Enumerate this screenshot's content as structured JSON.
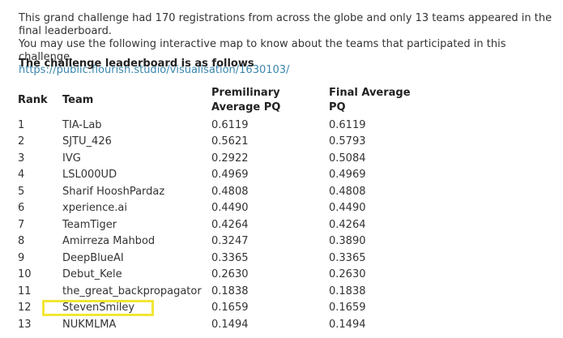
{
  "intro": {
    "line1": "This grand challenge had 170 registrations from across the globe and only 13 teams appeared in the final leaderboard.",
    "line2": "You may use the following interactive map to know about the teams that participated in this challenge.",
    "link": "https://public.flourish.studio/visualisation/1630103/"
  },
  "heading": "The challenge leaderboard is as follows",
  "table": {
    "headers": {
      "rank": "Rank",
      "team": "Team",
      "prelim": "Premilinary Average PQ",
      "final": "Final Average PQ"
    },
    "rows": [
      {
        "rank": "1",
        "team": "TIA-Lab",
        "prelim": "0.6119",
        "final": "0.6119"
      },
      {
        "rank": "2",
        "team": "SJTU_426",
        "prelim": "0.5621",
        "final": "0.5793"
      },
      {
        "rank": "3",
        "team": "IVG",
        "prelim": "0.2922",
        "final": "0.5084"
      },
      {
        "rank": "4",
        "team": "LSL000UD",
        "prelim": "0.4969",
        "final": "0.4969"
      },
      {
        "rank": "5",
        "team": "Sharif HooshPardaz",
        "prelim": "0.4808",
        "final": "0.4808"
      },
      {
        "rank": "6",
        "team": "xperience.ai",
        "prelim": "0.4490",
        "final": "0.4490"
      },
      {
        "rank": "7",
        "team": "TeamTiger",
        "prelim": "0.4264",
        "final": "0.4264"
      },
      {
        "rank": "8",
        "team": "Amirreza Mahbod",
        "prelim": "0.3247",
        "final": "0.3890"
      },
      {
        "rank": "9",
        "team": "DeepBlueAI",
        "prelim": "0.3365",
        "final": "0.3365"
      },
      {
        "rank": "10",
        "team": "Debut_Kele",
        "prelim": "0.2630",
        "final": "0.2630"
      },
      {
        "rank": "11",
        "team": "the_great_backpropagator",
        "prelim": "0.1838",
        "final": "0.1838"
      },
      {
        "rank": "12",
        "team": "StevenSmiley",
        "prelim": "0.1659",
        "final": "0.1659"
      },
      {
        "rank": "13",
        "team": "NUKMLMA",
        "prelim": "0.1494",
        "final": "0.1494"
      }
    ]
  },
  "highlight": {
    "team": "StevenSmiley",
    "color": "#f2e633"
  }
}
